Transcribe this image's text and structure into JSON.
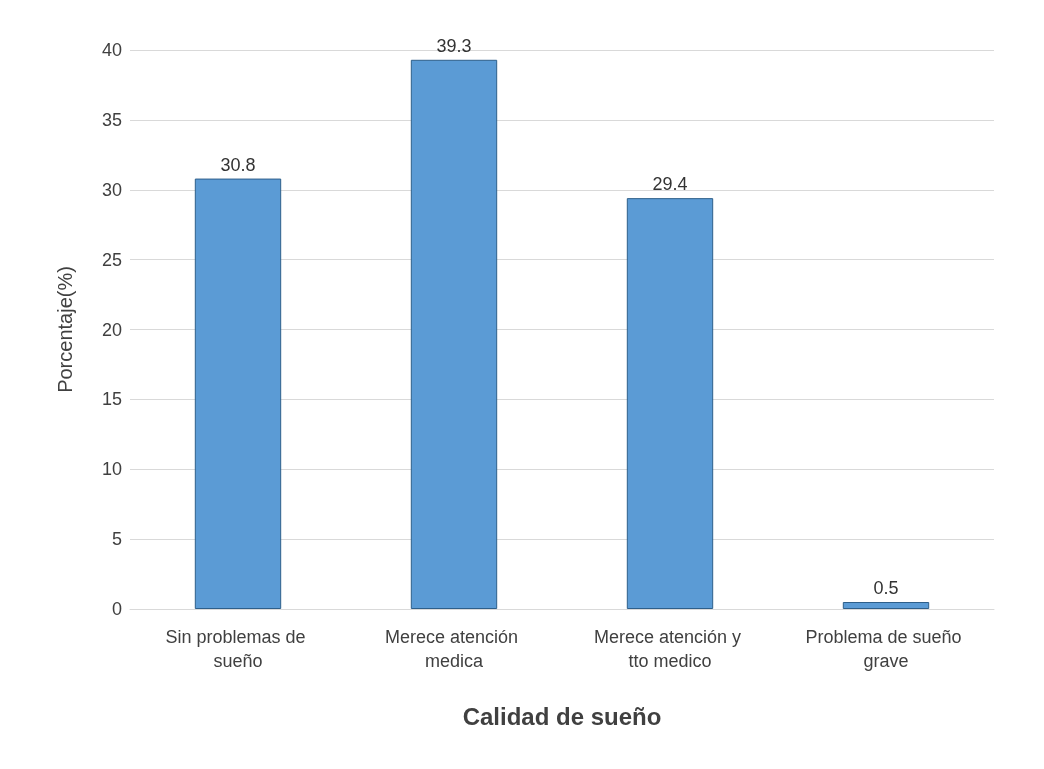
{
  "chart_data": {
    "type": "bar",
    "xlabel": "Calidad de sueño",
    "ylabel": "Porcentaje(%)",
    "categories": [
      "Sin problemas de sueño",
      "Merece atención medica",
      "Merece atención y tto medico",
      "Problema de sueño grave"
    ],
    "values": [
      30.8,
      39.3,
      29.4,
      0.5
    ],
    "color": "#5b9bd5",
    "ylim": [
      0,
      40
    ],
    "yticks": [
      0,
      5,
      10,
      15,
      20,
      25,
      30,
      35,
      40
    ],
    "grid": "y",
    "data_labels": true
  }
}
